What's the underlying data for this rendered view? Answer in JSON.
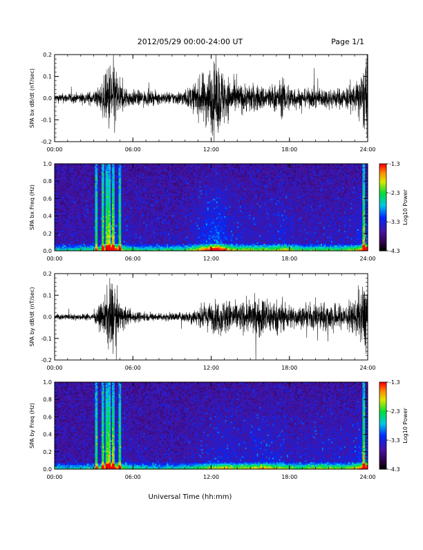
{
  "header": {
    "date_range": "2012/05/29  00:00-24:00 UT",
    "page": "Page 1/1"
  },
  "xlabel": "Universal Time (hh:mm)",
  "chart_data": [
    {
      "type": "line",
      "ylabel": "SPA bx dB/dt (nT/sec)",
      "xlim": [
        0,
        24
      ],
      "ylim": [
        -0.2,
        0.2
      ],
      "x_ticks": [
        "00:00",
        "06:00",
        "12:00",
        "18:00",
        "24:00"
      ],
      "y_ticks": [
        "0.2",
        "0.1",
        "0.0",
        "-0.1",
        "-0.2"
      ],
      "activity_envelope": {
        "hours": [
          0,
          1,
          2,
          3,
          3.5,
          4,
          4.3,
          4.6,
          5,
          5.5,
          6,
          7,
          8,
          9,
          10,
          10.5,
          11,
          11.5,
          12,
          12.5,
          13,
          13.5,
          14,
          15,
          16,
          17,
          17.5,
          18,
          19,
          20,
          21,
          22,
          23,
          23.5,
          24
        ],
        "amplitude": [
          0.02,
          0.025,
          0.025,
          0.035,
          0.06,
          0.13,
          0.2,
          0.18,
          0.08,
          0.05,
          0.04,
          0.035,
          0.03,
          0.03,
          0.04,
          0.06,
          0.09,
          0.13,
          0.16,
          0.18,
          0.13,
          0.09,
          0.07,
          0.07,
          0.06,
          0.07,
          0.09,
          0.07,
          0.04,
          0.05,
          0.05,
          0.05,
          0.07,
          0.12,
          0.2
        ]
      }
    },
    {
      "type": "heatmap",
      "ylabel": "SPA bx Freq (Hz)",
      "xlim": [
        0,
        24
      ],
      "ylim": [
        0,
        1.0
      ],
      "x_ticks": [
        "00:00",
        "06:00",
        "12:00",
        "18:00",
        "24:00"
      ],
      "y_ticks": [
        "1.0",
        "0.8",
        "0.6",
        "0.4",
        "0.2",
        "0.0"
      ],
      "colorbar": {
        "label": "Log10 Power",
        "ticks": [
          "-1.3",
          "-2.3",
          "-3.3",
          "-4.3"
        ],
        "range": [
          -4.3,
          -1.3
        ]
      },
      "bright_bands_hours": [
        3.2,
        3.7,
        4.0,
        4.2,
        4.5,
        5.0,
        23.7
      ],
      "activity_envelope_ref": "panel1"
    },
    {
      "type": "line",
      "ylabel": "SPA by dB/dt (nT/sec)",
      "xlim": [
        0,
        24
      ],
      "ylim": [
        -0.2,
        0.2
      ],
      "x_ticks": [
        "00:00",
        "06:00",
        "12:00",
        "18:00",
        "24:00"
      ],
      "y_ticks": [
        "0.2",
        "0.1",
        "0.0",
        "-0.1",
        "-0.2"
      ],
      "activity_envelope": {
        "hours": [
          0,
          1,
          2,
          3,
          3.5,
          4,
          4.3,
          4.6,
          5,
          5.5,
          6,
          7,
          8,
          9,
          10,
          10.5,
          11,
          11.5,
          12,
          12.5,
          13,
          13.5,
          14,
          15,
          16,
          17,
          17.5,
          18,
          19,
          20,
          21,
          22,
          23,
          23.5,
          24
        ],
        "amplitude": [
          0.015,
          0.015,
          0.015,
          0.02,
          0.06,
          0.12,
          0.2,
          0.15,
          0.07,
          0.045,
          0.03,
          0.02,
          0.02,
          0.02,
          0.025,
          0.035,
          0.045,
          0.06,
          0.07,
          0.08,
          0.09,
          0.08,
          0.07,
          0.08,
          0.1,
          0.08,
          0.07,
          0.06,
          0.05,
          0.07,
          0.07,
          0.06,
          0.08,
          0.13,
          0.2
        ]
      }
    },
    {
      "type": "heatmap",
      "ylabel": "SPA by Freq (Hz)",
      "xlim": [
        0,
        24
      ],
      "ylim": [
        0,
        1.0
      ],
      "x_ticks": [
        "00:00",
        "06:00",
        "12:00",
        "18:00",
        "24:00"
      ],
      "y_ticks": [
        "1.0",
        "0.8",
        "0.6",
        "0.4",
        "0.2",
        "0.0"
      ],
      "colorbar": {
        "label": "Log10 Power",
        "ticks": [
          "-1.3",
          "-2.3",
          "-3.3",
          "-4.3"
        ],
        "range": [
          -4.3,
          -1.3
        ]
      },
      "bright_bands_hours": [
        3.2,
        3.7,
        4.0,
        4.2,
        4.5,
        5.0,
        23.7
      ],
      "activity_envelope_ref": "panel3"
    }
  ]
}
